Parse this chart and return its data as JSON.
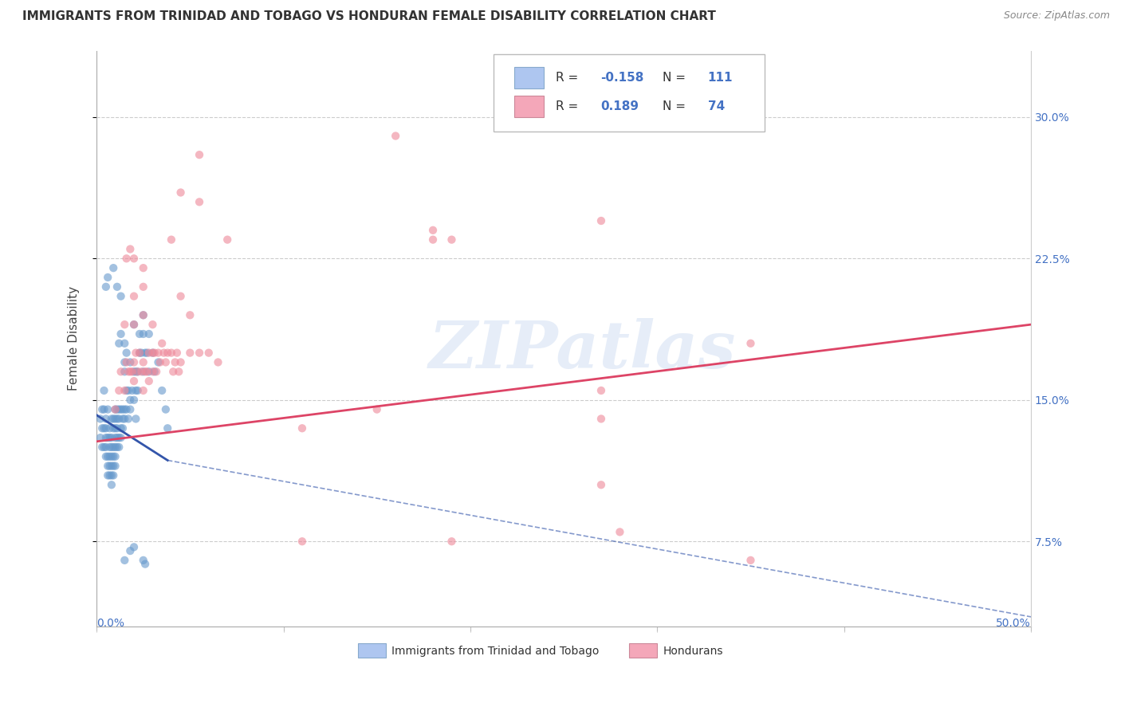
{
  "title": "IMMIGRANTS FROM TRINIDAD AND TOBAGO VS HONDURAN FEMALE DISABILITY CORRELATION CHART",
  "source": "Source: ZipAtlas.com",
  "ylabel": "Female Disability",
  "ytick_labels": [
    "7.5%",
    "15.0%",
    "22.5%",
    "30.0%"
  ],
  "ytick_values": [
    0.075,
    0.15,
    0.225,
    0.3
  ],
  "xlim": [
    0.0,
    0.5
  ],
  "ylim": [
    0.03,
    0.335
  ],
  "legend_entries": [
    {
      "label": "Immigrants from Trinidad and Tobago",
      "R": "-0.158",
      "N": "111",
      "color": "#aec6f0"
    },
    {
      "label": "Hondurans",
      "R": "0.189",
      "N": "74",
      "color": "#f4a7b9"
    }
  ],
  "blue_scatter": [
    [
      0.005,
      0.135
    ],
    [
      0.005,
      0.14
    ],
    [
      0.005,
      0.13
    ],
    [
      0.005,
      0.125
    ],
    [
      0.005,
      0.12
    ],
    [
      0.006,
      0.145
    ],
    [
      0.006,
      0.13
    ],
    [
      0.006,
      0.12
    ],
    [
      0.006,
      0.115
    ],
    [
      0.006,
      0.11
    ],
    [
      0.007,
      0.135
    ],
    [
      0.007,
      0.13
    ],
    [
      0.007,
      0.125
    ],
    [
      0.007,
      0.12
    ],
    [
      0.007,
      0.115
    ],
    [
      0.007,
      0.11
    ],
    [
      0.008,
      0.14
    ],
    [
      0.008,
      0.13
    ],
    [
      0.008,
      0.125
    ],
    [
      0.008,
      0.12
    ],
    [
      0.008,
      0.115
    ],
    [
      0.008,
      0.11
    ],
    [
      0.008,
      0.105
    ],
    [
      0.009,
      0.14
    ],
    [
      0.009,
      0.135
    ],
    [
      0.009,
      0.125
    ],
    [
      0.009,
      0.12
    ],
    [
      0.009,
      0.115
    ],
    [
      0.009,
      0.11
    ],
    [
      0.01,
      0.145
    ],
    [
      0.01,
      0.14
    ],
    [
      0.01,
      0.135
    ],
    [
      0.01,
      0.13
    ],
    [
      0.01,
      0.125
    ],
    [
      0.01,
      0.12
    ],
    [
      0.01,
      0.115
    ],
    [
      0.011,
      0.145
    ],
    [
      0.011,
      0.14
    ],
    [
      0.011,
      0.135
    ],
    [
      0.011,
      0.13
    ],
    [
      0.011,
      0.125
    ],
    [
      0.012,
      0.145
    ],
    [
      0.012,
      0.14
    ],
    [
      0.012,
      0.13
    ],
    [
      0.012,
      0.125
    ],
    [
      0.013,
      0.145
    ],
    [
      0.013,
      0.135
    ],
    [
      0.013,
      0.13
    ],
    [
      0.014,
      0.145
    ],
    [
      0.014,
      0.14
    ],
    [
      0.014,
      0.135
    ],
    [
      0.015,
      0.17
    ],
    [
      0.015,
      0.165
    ],
    [
      0.015,
      0.145
    ],
    [
      0.015,
      0.14
    ],
    [
      0.016,
      0.155
    ],
    [
      0.016,
      0.145
    ],
    [
      0.017,
      0.155
    ],
    [
      0.017,
      0.14
    ],
    [
      0.018,
      0.15
    ],
    [
      0.018,
      0.145
    ],
    [
      0.019,
      0.155
    ],
    [
      0.02,
      0.165
    ],
    [
      0.02,
      0.15
    ],
    [
      0.021,
      0.165
    ],
    [
      0.021,
      0.155
    ],
    [
      0.021,
      0.14
    ],
    [
      0.022,
      0.165
    ],
    [
      0.022,
      0.155
    ],
    [
      0.023,
      0.185
    ],
    [
      0.023,
      0.175
    ],
    [
      0.024,
      0.175
    ],
    [
      0.025,
      0.185
    ],
    [
      0.025,
      0.165
    ],
    [
      0.026,
      0.175
    ],
    [
      0.027,
      0.175
    ],
    [
      0.028,
      0.185
    ],
    [
      0.028,
      0.165
    ],
    [
      0.03,
      0.175
    ],
    [
      0.031,
      0.165
    ],
    [
      0.033,
      0.17
    ],
    [
      0.035,
      0.155
    ],
    [
      0.037,
      0.145
    ],
    [
      0.038,
      0.135
    ],
    [
      0.004,
      0.155
    ],
    [
      0.004,
      0.145
    ],
    [
      0.004,
      0.135
    ],
    [
      0.004,
      0.125
    ],
    [
      0.003,
      0.145
    ],
    [
      0.003,
      0.135
    ],
    [
      0.003,
      0.125
    ],
    [
      0.002,
      0.14
    ],
    [
      0.002,
      0.13
    ],
    [
      0.015,
      0.065
    ],
    [
      0.018,
      0.07
    ],
    [
      0.02,
      0.072
    ],
    [
      0.025,
      0.065
    ],
    [
      0.026,
      0.063
    ],
    [
      0.02,
      0.19
    ],
    [
      0.025,
      0.195
    ],
    [
      0.009,
      0.22
    ],
    [
      0.011,
      0.21
    ],
    [
      0.013,
      0.205
    ],
    [
      0.005,
      0.21
    ],
    [
      0.006,
      0.215
    ],
    [
      0.012,
      0.18
    ],
    [
      0.015,
      0.18
    ],
    [
      0.013,
      0.185
    ],
    [
      0.016,
      0.175
    ],
    [
      0.018,
      0.17
    ]
  ],
  "pink_scatter": [
    [
      0.01,
      0.145
    ],
    [
      0.012,
      0.155
    ],
    [
      0.013,
      0.165
    ],
    [
      0.015,
      0.155
    ],
    [
      0.016,
      0.17
    ],
    [
      0.017,
      0.165
    ],
    [
      0.018,
      0.165
    ],
    [
      0.019,
      0.165
    ],
    [
      0.02,
      0.17
    ],
    [
      0.02,
      0.16
    ],
    [
      0.021,
      0.175
    ],
    [
      0.022,
      0.165
    ],
    [
      0.023,
      0.175
    ],
    [
      0.024,
      0.165
    ],
    [
      0.025,
      0.17
    ],
    [
      0.025,
      0.155
    ],
    [
      0.026,
      0.165
    ],
    [
      0.027,
      0.165
    ],
    [
      0.028,
      0.175
    ],
    [
      0.028,
      0.16
    ],
    [
      0.03,
      0.175
    ],
    [
      0.03,
      0.165
    ],
    [
      0.031,
      0.175
    ],
    [
      0.032,
      0.165
    ],
    [
      0.033,
      0.175
    ],
    [
      0.034,
      0.17
    ],
    [
      0.035,
      0.18
    ],
    [
      0.036,
      0.175
    ],
    [
      0.037,
      0.17
    ],
    [
      0.038,
      0.175
    ],
    [
      0.04,
      0.175
    ],
    [
      0.041,
      0.165
    ],
    [
      0.042,
      0.17
    ],
    [
      0.043,
      0.175
    ],
    [
      0.044,
      0.165
    ],
    [
      0.045,
      0.17
    ],
    [
      0.05,
      0.175
    ],
    [
      0.055,
      0.175
    ],
    [
      0.06,
      0.175
    ],
    [
      0.065,
      0.17
    ],
    [
      0.015,
      0.19
    ],
    [
      0.02,
      0.19
    ],
    [
      0.025,
      0.195
    ],
    [
      0.03,
      0.19
    ],
    [
      0.02,
      0.205
    ],
    [
      0.025,
      0.21
    ],
    [
      0.045,
      0.205
    ],
    [
      0.05,
      0.195
    ],
    [
      0.016,
      0.225
    ],
    [
      0.018,
      0.23
    ],
    [
      0.02,
      0.225
    ],
    [
      0.025,
      0.22
    ],
    [
      0.04,
      0.235
    ],
    [
      0.07,
      0.235
    ],
    [
      0.18,
      0.235
    ],
    [
      0.19,
      0.235
    ],
    [
      0.045,
      0.26
    ],
    [
      0.055,
      0.255
    ],
    [
      0.27,
      0.245
    ],
    [
      0.18,
      0.24
    ],
    [
      0.055,
      0.28
    ],
    [
      0.16,
      0.29
    ],
    [
      0.11,
      0.075
    ],
    [
      0.19,
      0.075
    ],
    [
      0.35,
      0.065
    ],
    [
      0.28,
      0.08
    ],
    [
      0.27,
      0.105
    ],
    [
      0.35,
      0.18
    ],
    [
      0.27,
      0.14
    ],
    [
      0.15,
      0.145
    ],
    [
      0.11,
      0.135
    ],
    [
      0.27,
      0.155
    ]
  ],
  "blue_line_solid": {
    "x0": 0.0,
    "x1": 0.038,
    "y0": 0.142,
    "y1": 0.118
  },
  "blue_line_dash": {
    "x0": 0.038,
    "x1": 0.5,
    "y0": 0.118,
    "y1": 0.035
  },
  "pink_line": {
    "x0": 0.0,
    "x1": 0.5,
    "y0": 0.128,
    "y1": 0.19
  },
  "watermark": "ZIPatlas",
  "bg_color": "#ffffff",
  "scatter_size": 55,
  "scatter_alpha": 0.6,
  "blue_color": "#6699cc",
  "pink_color": "#ee8899",
  "blue_line_color": "#3355aa",
  "pink_line_color": "#dd4466",
  "grid_color": "#cccccc"
}
